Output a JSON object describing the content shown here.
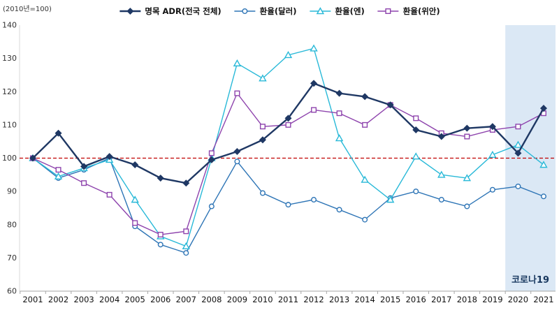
{
  "axis_note": "(2010년=100)",
  "chart_data": {
    "type": "line",
    "x": [
      2001,
      2002,
      2003,
      2004,
      2005,
      2006,
      2007,
      2008,
      2009,
      2010,
      2011,
      2012,
      2013,
      2014,
      2015,
      2016,
      2017,
      2018,
      2019,
      2020,
      2021
    ],
    "series": [
      {
        "name": "명목 ADR(전국 전체)",
        "marker": "diamond",
        "color": "#1F3864",
        "values": [
          100,
          107.5,
          97.5,
          100.5,
          98,
          94,
          92.5,
          99.5,
          102,
          105.5,
          112,
          122.5,
          119.5,
          118.5,
          116,
          108.5,
          106.5,
          109,
          109.5,
          101.5,
          115
        ]
      },
      {
        "name": "환율(달러)",
        "marker": "circle",
        "color": "#2E75B6",
        "values": [
          100,
          94,
          96.5,
          100,
          79.5,
          74,
          71.5,
          85.5,
          99,
          89.5,
          86,
          87.5,
          84.5,
          81.5,
          88,
          90,
          87.5,
          85.5,
          90.5,
          91.5,
          88.5
        ]
      },
      {
        "name": "환율(엔)",
        "marker": "triangle",
        "color": "#29B9D8",
        "values": [
          100,
          94.5,
          97,
          99.5,
          87.5,
          76.5,
          73.5,
          100,
          128.5,
          124,
          131,
          133,
          106,
          93.5,
          87.5,
          100.5,
          95,
          94,
          101,
          104,
          98
        ]
      },
      {
        "name": "환율(위안)",
        "marker": "square",
        "color": "#8E44AD",
        "values": [
          100,
          96.5,
          92.5,
          89,
          80.5,
          77,
          78,
          101.5,
          119.5,
          109.5,
          110,
          114.5,
          113.5,
          110,
          116,
          112,
          107.5,
          106.5,
          108.5,
          109.5,
          113.5
        ]
      }
    ],
    "ylim": [
      60,
      140
    ],
    "yticks": [
      60,
      70,
      80,
      90,
      100,
      110,
      120,
      130,
      140
    ],
    "refline": {
      "y": 100,
      "color": "#C00000",
      "style": "dashed"
    },
    "highlight": {
      "covers": [
        2020,
        2021
      ],
      "color": "#DBE8F5",
      "label": "코로나19",
      "label_color": "#17375E"
    },
    "legend_position": "top",
    "grid": false,
    "axis_color": "#A6A6A6",
    "tick_label_color": "#333333",
    "x_label_color": "#111111"
  }
}
